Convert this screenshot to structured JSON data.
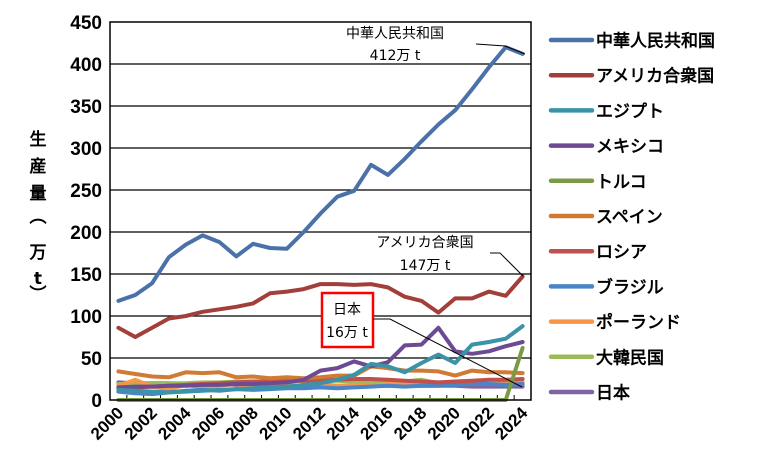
{
  "chart_data": {
    "type": "line",
    "title": "",
    "xlabel": "",
    "ylabel": "生産量（万t）",
    "ylim": [
      0,
      450
    ],
    "yticks": [
      0,
      50,
      100,
      150,
      200,
      250,
      300,
      350,
      400,
      450
    ],
    "grid": true,
    "legend_position": "right",
    "x": [
      2000,
      2001,
      2002,
      2003,
      2004,
      2005,
      2006,
      2007,
      2008,
      2009,
      2010,
      2011,
      2012,
      2013,
      2014,
      2015,
      2016,
      2017,
      2018,
      2019,
      2020,
      2021,
      2022,
      2023,
      2024
    ],
    "xtick_labels": [
      "2000",
      "2002",
      "2004",
      "2006",
      "2008",
      "2010",
      "2012",
      "2014",
      "2016",
      "2018",
      "2020",
      "2022",
      "2024"
    ],
    "series": [
      {
        "name": "中華人民共和国",
        "color": "#4A72A8",
        "values": [
          118,
          125,
          139,
          170,
          185,
          196,
          188,
          171,
          186,
          181,
          180,
          200,
          222,
          242,
          249,
          280,
          268,
          287,
          308,
          328,
          345,
          370,
          396,
          420,
          412
        ]
      },
      {
        "name": "アメリカ合衆国",
        "color": "#A33F3A",
        "values": [
          86,
          75,
          86,
          97,
          100,
          105,
          108,
          111,
          115,
          127,
          129,
          132,
          138,
          138,
          137,
          138,
          134,
          123,
          118,
          104,
          121,
          121,
          129,
          124,
          147
        ]
      },
      {
        "name": "エジプト",
        "color": "#3A93A6",
        "values": [
          12,
          11,
          10,
          9,
          10,
          11,
          12,
          13,
          14,
          15,
          16,
          18,
          20,
          24,
          30,
          43,
          40,
          33,
          44,
          54,
          44,
          66,
          69,
          73,
          88
        ]
      },
      {
        "name": "メキシコ",
        "color": "#6D4A92",
        "values": [
          15,
          16,
          16,
          17,
          17,
          18,
          18,
          19,
          19,
          20,
          21,
          24,
          35,
          38,
          46,
          40,
          45,
          65,
          66,
          86,
          58,
          55,
          58,
          64,
          69
        ]
      },
      {
        "name": "トルコ",
        "color": "#7B9A45",
        "values": [
          0,
          0,
          0,
          0,
          0,
          0,
          0,
          0,
          0,
          0,
          0,
          0,
          0,
          0,
          0,
          0,
          0,
          0,
          0,
          0,
          0,
          0,
          0,
          0,
          62
        ]
      },
      {
        "name": "スペイン",
        "color": "#D17A34",
        "values": [
          34,
          31,
          28,
          27,
          33,
          32,
          33,
          27,
          28,
          26,
          27,
          26,
          27,
          29,
          29,
          40,
          38,
          35,
          35,
          34,
          29,
          35,
          33,
          33,
          32
        ]
      },
      {
        "name": "ロシア",
        "color": "#C0504D",
        "values": [
          14,
          15,
          16,
          17,
          18,
          19,
          20,
          21,
          22,
          22,
          23,
          23,
          24,
          24,
          25,
          25,
          24,
          23,
          22,
          21,
          22,
          23,
          24,
          24,
          25
        ]
      },
      {
        "name": "ブラジル",
        "color": "#4A85C8",
        "values": [
          10,
          8,
          7,
          9,
          11,
          12,
          11,
          13,
          12,
          13,
          14,
          14,
          15,
          14,
          15,
          16,
          17,
          16,
          17,
          17,
          18,
          19,
          19,
          18,
          19
        ]
      },
      {
        "name": "ポーランド",
        "color": "#F79646",
        "values": [
          17,
          24,
          16,
          13,
          18,
          15,
          17,
          19,
          16,
          20,
          18,
          16,
          19,
          17,
          18,
          17,
          19,
          20,
          21,
          20,
          22,
          21,
          22,
          23,
          21
        ]
      },
      {
        "name": "大韓民国",
        "color": "#9BBB59",
        "values": [
          19,
          19,
          20,
          20,
          20,
          21,
          21,
          22,
          22,
          22,
          22,
          23,
          23,
          23,
          22,
          22,
          21,
          22,
          24,
          20,
          21,
          21,
          20,
          20,
          20
        ]
      },
      {
        "name": "日本",
        "color": "#8064A2",
        "values": [
          21,
          20,
          20,
          20,
          19,
          19,
          19,
          18,
          18,
          17,
          17,
          17,
          17,
          17,
          17,
          17,
          17,
          17,
          17,
          17,
          17,
          16,
          16,
          16,
          16
        ]
      }
    ],
    "annotations": [
      {
        "series": "中華人民共和国",
        "line1": "中華人民共和国",
        "line2": "412万 t",
        "year": 2024,
        "value": 412
      },
      {
        "series": "アメリカ合衆国",
        "line1": "アメリカ合衆国",
        "line2": "147万 t",
        "year": 2024,
        "value": 147
      },
      {
        "series": "日本",
        "line1": "日本",
        "line2": "16万 t",
        "year": 2024,
        "value": 16,
        "boxed": true,
        "box_color": "#FF0000"
      }
    ]
  },
  "axis": {
    "ylabel_chars": [
      "生",
      "産",
      "量",
      "︵",
      "万",
      "t",
      "︶"
    ]
  },
  "labels": {
    "ann_china_1": "中華人民共和国",
    "ann_china_2": "412万 t",
    "ann_usa_1": "アメリカ合衆国",
    "ann_usa_2": "147万 t",
    "ann_japan_1": "日本",
    "ann_japan_2": "16万 t"
  }
}
